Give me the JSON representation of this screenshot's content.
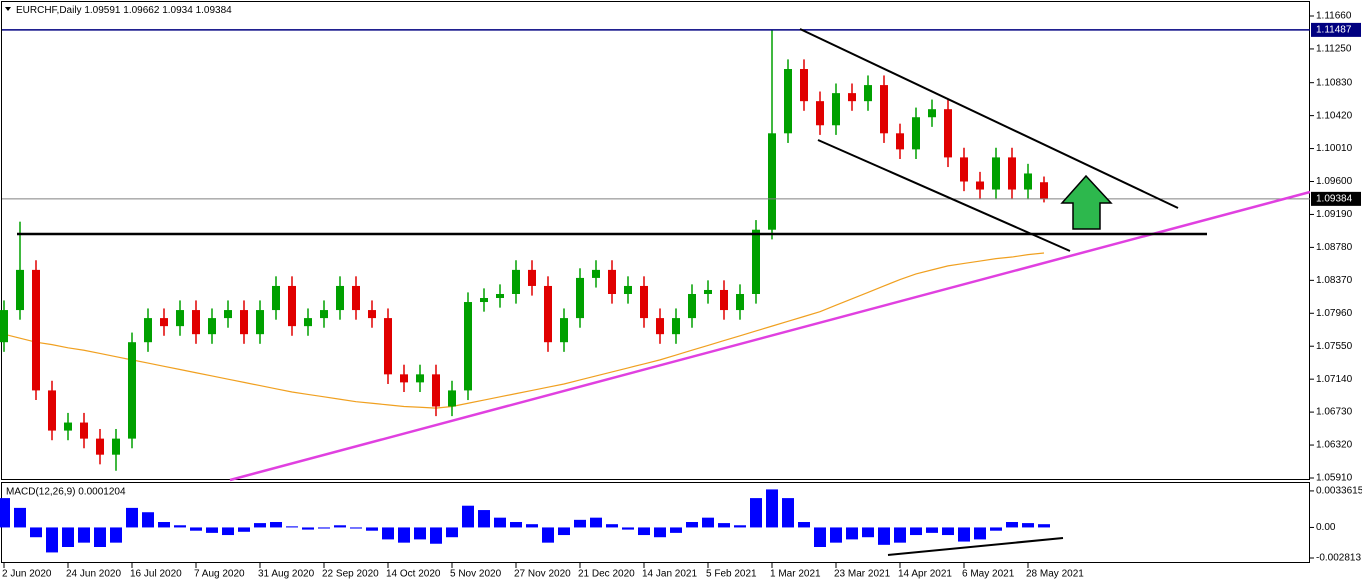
{
  "chart_data": [
    {
      "type": "candlestick",
      "title": "EURCHF,Daily",
      "categories": [
        "2 Jun 2020",
        null,
        null,
        null,
        "24 Jun 2020",
        null,
        null,
        null,
        "16 Jul 2020",
        null,
        null,
        null,
        "7 Aug 2020",
        null,
        null,
        null,
        "31 Aug 2020",
        null,
        null,
        null,
        "22 Sep 2020",
        null,
        null,
        null,
        "14 Oct 2020",
        null,
        null,
        null,
        "5 Nov 2020",
        null,
        null,
        null,
        "27 Nov 2020",
        null,
        null,
        null,
        "21 Dec 2020",
        null,
        null,
        null,
        "14 Jan 2021",
        null,
        null,
        null,
        "5 Feb 2021",
        null,
        null,
        null,
        "1 Mar 2021",
        null,
        null,
        null,
        "23 Mar 2021",
        null,
        null,
        null,
        "14 Apr 2021",
        null,
        null,
        null,
        "6 May 2021",
        null,
        null,
        null,
        "28 May 2021",
        null
      ],
      "open": [
        1.076,
        1.08,
        1.085,
        1.07,
        1.065,
        1.066,
        1.064,
        1.062,
        1.064,
        1.076,
        1.079,
        1.078,
        1.08,
        1.077,
        1.079,
        1.08,
        1.077,
        1.08,
        1.083,
        1.078,
        1.079,
        1.08,
        1.083,
        1.08,
        1.079,
        1.072,
        1.071,
        1.072,
        1.068,
        1.07,
        1.081,
        1.0815,
        1.082,
        1.085,
        1.083,
        1.076,
        1.079,
        1.084,
        1.085,
        1.082,
        1.083,
        1.079,
        1.077,
        1.079,
        1.082,
        1.0825,
        1.08,
        1.082,
        1.09,
        1.102,
        1.11,
        1.106,
        1.103,
        1.107,
        1.106,
        1.108,
        1.102,
        1.1,
        1.104,
        1.105,
        1.099,
        1.096,
        1.095,
        1.099,
        1.095,
        1.09591
      ],
      "high": [
        1.0812,
        1.091,
        1.0862,
        1.0712,
        1.0672,
        1.0672,
        1.0652,
        1.0652,
        1.0772,
        1.0802,
        1.0802,
        1.0812,
        1.0812,
        1.0802,
        1.0812,
        1.0812,
        1.0812,
        1.0842,
        1.0842,
        1.0802,
        1.0812,
        1.0842,
        1.0842,
        1.0812,
        1.0802,
        1.0732,
        1.0732,
        1.0732,
        1.0712,
        1.0822,
        1.0827,
        1.0832,
        1.0862,
        1.0862,
        1.0842,
        1.0802,
        1.0852,
        1.0862,
        1.0862,
        1.0842,
        1.0842,
        1.0802,
        1.0802,
        1.0832,
        1.0837,
        1.0837,
        1.0832,
        1.0912,
        1.1149,
        1.1112,
        1.1112,
        1.1072,
        1.1082,
        1.1082,
        1.1092,
        1.1092,
        1.1032,
        1.1052,
        1.1062,
        1.1062,
        1.1002,
        1.0972,
        1.1002,
        1.1002,
        1.0982,
        1.09662
      ],
      "low": [
        1.0748,
        1.0788,
        1.0688,
        1.0638,
        1.0638,
        1.0628,
        1.0608,
        1.06,
        1.0628,
        1.0748,
        1.0768,
        1.0768,
        1.0758,
        1.0758,
        1.0778,
        1.0758,
        1.0758,
        1.0788,
        1.0768,
        1.0768,
        1.0778,
        1.0788,
        1.0788,
        1.0778,
        1.0708,
        1.0698,
        1.0698,
        1.0668,
        1.0668,
        1.0688,
        1.0798,
        1.0803,
        1.0808,
        1.0818,
        1.0748,
        1.0748,
        1.0778,
        1.0828,
        1.0808,
        1.0808,
        1.0778,
        1.0758,
        1.0758,
        1.0778,
        1.0808,
        1.0788,
        1.0788,
        1.0808,
        1.0888,
        1.1008,
        1.1048,
        1.1018,
        1.1018,
        1.1048,
        1.1048,
        1.1008,
        1.0988,
        1.0988,
        1.1028,
        1.0978,
        1.0948,
        1.0938,
        1.0938,
        1.0938,
        1.0938,
        1.0934
      ],
      "close": [
        1.08,
        1.085,
        1.07,
        1.065,
        1.066,
        1.064,
        1.062,
        1.064,
        1.076,
        1.079,
        1.078,
        1.08,
        1.077,
        1.079,
        1.08,
        1.077,
        1.08,
        1.083,
        1.078,
        1.079,
        1.08,
        1.083,
        1.08,
        1.079,
        1.072,
        1.071,
        1.072,
        1.068,
        1.07,
        1.081,
        1.0815,
        1.082,
        1.085,
        1.083,
        1.076,
        1.079,
        1.084,
        1.085,
        1.082,
        1.083,
        1.079,
        1.077,
        1.079,
        1.082,
        1.0825,
        1.08,
        1.082,
        1.09,
        1.102,
        1.11,
        1.106,
        1.103,
        1.107,
        1.106,
        1.108,
        1.102,
        1.1,
        1.104,
        1.105,
        1.099,
        1.096,
        1.095,
        1.099,
        1.095,
        1.097,
        1.09384
      ],
      "up_color": "#00a000",
      "down_color": "#e00000",
      "ma": {
        "color": "#f0a020",
        "values": [
          1.077,
          1.0765,
          1.076,
          1.0757,
          1.0753,
          1.075,
          1.0746,
          1.0742,
          1.0738,
          1.0734,
          1.073,
          1.0726,
          1.0722,
          1.0718,
          1.0714,
          1.071,
          1.0706,
          1.0702,
          1.0698,
          1.0695,
          1.0692,
          1.0689,
          1.0686,
          1.0684,
          1.0682,
          1.068,
          1.0679,
          1.0678,
          1.068,
          1.0684,
          1.0688,
          1.0692,
          1.0696,
          1.07,
          1.0704,
          1.0708,
          1.0713,
          1.0718,
          1.0723,
          1.0728,
          1.0733,
          1.0738,
          1.0744,
          1.075,
          1.0756,
          1.0762,
          1.0768,
          1.0774,
          1.078,
          1.0786,
          1.0792,
          1.0798,
          1.0806,
          1.0814,
          1.0822,
          1.083,
          1.0838,
          1.0845,
          1.085,
          1.0855,
          1.0858,
          1.0861,
          1.0864,
          1.0866,
          1.0869,
          1.0871
        ]
      },
      "level": 1.11487,
      "level_color": "#000080",
      "ylim": [
        1.05885,
        1.11859
      ],
      "yticks": [
        {
          "value": 1.1166,
          "label": "1.11660"
        },
        {
          "value": 1.1125,
          "label": "1.11250"
        },
        {
          "value": 1.1083,
          "label": "1.10830"
        },
        {
          "value": 1.1042,
          "label": "1.10420"
        },
        {
          "value": 1.1001,
          "label": "1.10010"
        },
        {
          "value": 1.096,
          "label": "1.09600"
        },
        {
          "value": 1.0919,
          "label": "1.09190"
        },
        {
          "value": 1.0878,
          "label": "1.08780"
        },
        {
          "value": 1.0837,
          "label": "1.08370"
        },
        {
          "value": 1.0796,
          "label": "1.07960"
        },
        {
          "value": 1.0755,
          "label": "1.07550"
        },
        {
          "value": 1.0714,
          "label": "1.07140"
        },
        {
          "value": 1.0673,
          "label": "1.06730"
        },
        {
          "value": 1.0632,
          "label": "1.06320"
        },
        {
          "value": 1.0591,
          "label": "1.05910"
        }
      ]
    },
    {
      "type": "bar",
      "title": "MACD(12,26,9) 0.0001204",
      "color": "#0000ff",
      "values": [
        0.0027,
        0.0018,
        -0.0009,
        -0.0023,
        -0.0018,
        -0.0014,
        -0.0018,
        -0.0014,
        0.0018,
        0.0014,
        0.0005,
        0.0002,
        -0.0003,
        -0.0005,
        -0.0007,
        -0.0004,
        0.0004,
        0.0005,
        0.0001,
        -0.0002,
        -0.0001,
        0.0002,
        -0.0001,
        -0.0003,
        -0.0011,
        -0.0014,
        -0.0011,
        -0.0015,
        -0.0009,
        0.002,
        0.0016,
        0.0009,
        0.0005,
        0.0003,
        -0.0014,
        -0.0007,
        0.0007,
        0.0009,
        0.0003,
        -0.0002,
        -0.0007,
        -0.0009,
        -0.0005,
        0.0005,
        0.0009,
        0.0004,
        0.0002,
        0.0027,
        0.0035,
        0.0027,
        0.0005,
        -0.0018,
        -0.0014,
        -0.0011,
        -0.0009,
        -0.0016,
        -0.0014,
        -0.0007,
        -0.0005,
        -0.0007,
        -0.0013,
        -0.0011,
        -0.0003,
        0.0005,
        0.0004,
        0.0003
      ],
      "ylim": [
        -0.00318,
        0.00409
      ],
      "yticks": [
        0.0033615,
        {
          "value": 0,
          "label": "0.00"
        },
        -0.002813
      ]
    }
  ]
}
